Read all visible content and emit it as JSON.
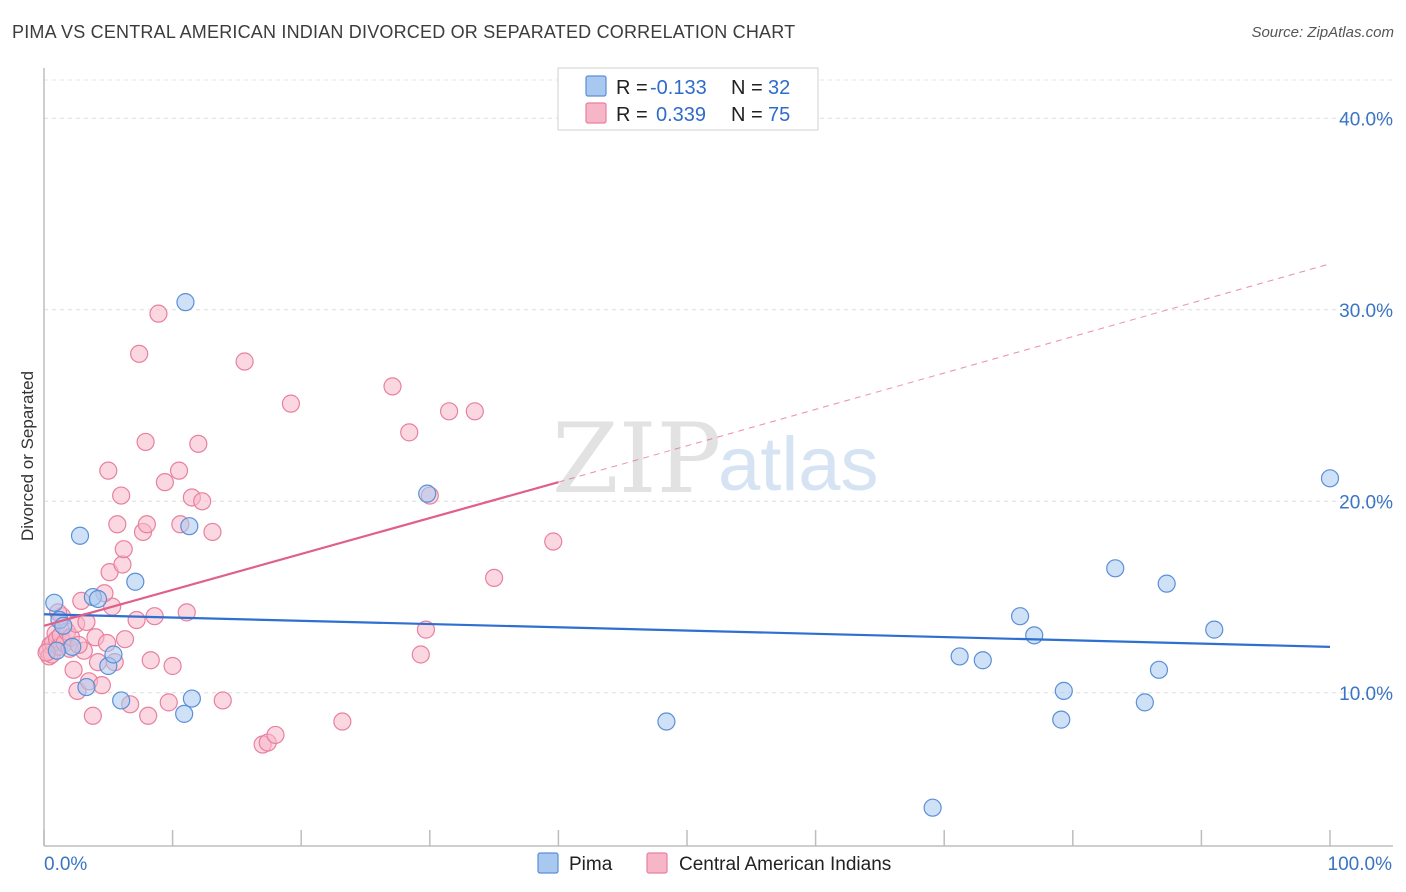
{
  "header": {
    "title": "PIMA VS CENTRAL AMERICAN INDIAN DIVORCED OR SEPARATED CORRELATION CHART",
    "source": "Source: ZipAtlas.com"
  },
  "legend": {
    "rows": [
      {
        "r_label": "R =",
        "r_value": "-0.133",
        "n_label": "N =",
        "n_value": "32",
        "color": "#a8c8f0"
      },
      {
        "r_label": "R =",
        "r_value": "0.339",
        "n_label": "N =",
        "n_value": "75",
        "color": "#f7b6c8"
      }
    ]
  },
  "watermark": {
    "zip": "ZIP",
    "atlas": "atlas"
  },
  "chart_data": {
    "type": "scatter",
    "title": "PIMA VS CENTRAL AMERICAN INDIAN DIVORCED OR SEPARATED CORRELATION CHART",
    "xlabel": "",
    "ylabel": "Divorced or Separated",
    "xlim": [
      0,
      100
    ],
    "ylim": [
      2,
      42
    ],
    "x_tick_labels": [
      "0.0%",
      "100.0%"
    ],
    "y_ticks": [
      10,
      20,
      30,
      40
    ],
    "y_tick_labels": [
      "10.0%",
      "20.0%",
      "30.0%",
      "40.0%"
    ],
    "grid": true,
    "legend_position": "top-center",
    "series": [
      {
        "name": "Pima",
        "color": "#a8c8f0",
        "stroke": "#5b8fd6",
        "line_color": "#2e6fcf",
        "trend": {
          "x": [
            0,
            100
          ],
          "y": [
            14.1,
            12.4
          ],
          "dashed_extension": false
        },
        "points": [
          [
            0.8,
            14.7
          ],
          [
            1.2,
            13.8
          ],
          [
            2.2,
            12.4
          ],
          [
            2.8,
            18.2
          ],
          [
            3.3,
            10.3
          ],
          [
            3.8,
            15.0
          ],
          [
            4.2,
            14.9
          ],
          [
            5.0,
            11.4
          ],
          [
            5.4,
            12.0
          ],
          [
            6.0,
            9.6
          ],
          [
            7.1,
            15.8
          ],
          [
            10.9,
            8.9
          ],
          [
            11.0,
            30.4
          ],
          [
            11.3,
            18.7
          ],
          [
            11.5,
            9.7
          ],
          [
            29.8,
            20.4
          ],
          [
            48.4,
            8.5
          ],
          [
            69.1,
            4.0
          ],
          [
            71.2,
            11.9
          ],
          [
            73.0,
            11.7
          ],
          [
            75.9,
            14.0
          ],
          [
            77.0,
            13.0
          ],
          [
            79.1,
            8.6
          ],
          [
            79.3,
            10.1
          ],
          [
            83.3,
            16.5
          ],
          [
            85.6,
            9.5
          ],
          [
            86.7,
            11.2
          ],
          [
            87.3,
            15.7
          ],
          [
            91.0,
            13.3
          ],
          [
            100.0,
            21.2
          ],
          [
            1.0,
            12.2
          ],
          [
            1.5,
            13.5
          ]
        ]
      },
      {
        "name": "Central American Indians",
        "color": "#f7b6c8",
        "stroke": "#e8809f",
        "line_color": "#e0608a",
        "trend": {
          "x": [
            0,
            40
          ],
          "y": [
            13.5,
            21.0
          ],
          "extension_x": [
            40,
            100
          ],
          "extension_y": [
            21.0,
            32.4
          ]
        },
        "points": [
          [
            0.3,
            12.2
          ],
          [
            0.4,
            11.9
          ],
          [
            0.5,
            12.5
          ],
          [
            0.6,
            12.0
          ],
          [
            0.7,
            12.6
          ],
          [
            0.9,
            13.1
          ],
          [
            1.0,
            12.8
          ],
          [
            1.2,
            12.4
          ],
          [
            1.3,
            13.0
          ],
          [
            1.4,
            14.0
          ],
          [
            1.6,
            12.6
          ],
          [
            1.8,
            13.2
          ],
          [
            2.0,
            12.3
          ],
          [
            2.1,
            12.9
          ],
          [
            2.3,
            11.2
          ],
          [
            2.5,
            13.6
          ],
          [
            2.6,
            10.1
          ],
          [
            2.9,
            14.8
          ],
          [
            3.1,
            12.2
          ],
          [
            3.3,
            13.7
          ],
          [
            3.5,
            10.6
          ],
          [
            3.8,
            8.8
          ],
          [
            4.0,
            12.9
          ],
          [
            4.2,
            11.6
          ],
          [
            4.5,
            10.4
          ],
          [
            4.9,
            12.6
          ],
          [
            5.0,
            21.6
          ],
          [
            5.1,
            16.3
          ],
          [
            5.3,
            14.5
          ],
          [
            5.5,
            11.6
          ],
          [
            5.7,
            18.8
          ],
          [
            6.0,
            20.3
          ],
          [
            6.1,
            16.7
          ],
          [
            6.2,
            17.5
          ],
          [
            6.3,
            12.8
          ],
          [
            6.7,
            9.4
          ],
          [
            7.2,
            13.8
          ],
          [
            7.4,
            27.7
          ],
          [
            7.7,
            18.4
          ],
          [
            7.9,
            23.1
          ],
          [
            8.0,
            18.8
          ],
          [
            8.1,
            8.8
          ],
          [
            8.3,
            11.7
          ],
          [
            8.6,
            14.0
          ],
          [
            8.9,
            29.8
          ],
          [
            9.4,
            21.0
          ],
          [
            9.7,
            9.5
          ],
          [
            10.0,
            11.4
          ],
          [
            10.5,
            21.6
          ],
          [
            10.6,
            18.8
          ],
          [
            11.1,
            14.2
          ],
          [
            11.5,
            20.2
          ],
          [
            12.0,
            23.0
          ],
          [
            12.3,
            20.0
          ],
          [
            13.1,
            18.4
          ],
          [
            13.9,
            9.6
          ],
          [
            15.6,
            27.3
          ],
          [
            17.0,
            7.3
          ],
          [
            17.4,
            7.4
          ],
          [
            18.0,
            7.8
          ],
          [
            19.2,
            25.1
          ],
          [
            23.2,
            8.5
          ],
          [
            27.1,
            26.0
          ],
          [
            28.4,
            23.6
          ],
          [
            29.3,
            12.0
          ],
          [
            29.7,
            13.3
          ],
          [
            30.0,
            20.3
          ],
          [
            31.5,
            24.7
          ],
          [
            33.5,
            24.7
          ],
          [
            35.0,
            16.0
          ],
          [
            39.6,
            17.9
          ],
          [
            0.2,
            12.1
          ],
          [
            1.1,
            14.2
          ],
          [
            2.7,
            12.5
          ],
          [
            4.7,
            15.2
          ]
        ]
      }
    ]
  }
}
